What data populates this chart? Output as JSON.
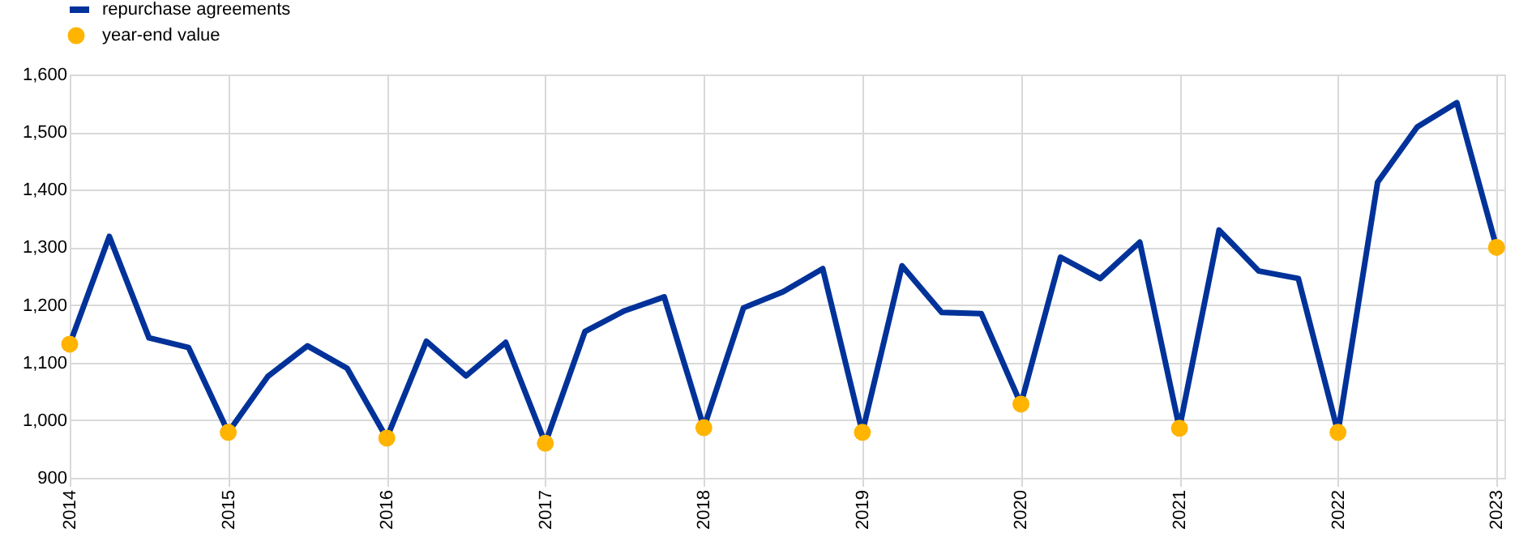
{
  "chart_data": {
    "type": "line",
    "x": [
      2014,
      2014.25,
      2014.5,
      2014.75,
      2015,
      2015.25,
      2015.5,
      2015.75,
      2016,
      2016.25,
      2016.5,
      2016.75,
      2017,
      2017.25,
      2017.5,
      2017.75,
      2018,
      2018.25,
      2018.5,
      2018.75,
      2019,
      2019.25,
      2019.5,
      2019.75,
      2020,
      2020.25,
      2020.5,
      2020.75,
      2021,
      2021.25,
      2021.5,
      2021.75,
      2022,
      2022.25,
      2022.5,
      2022.75,
      2023
    ],
    "series": [
      {
        "name": "repurchase agreements",
        "color": "#003299",
        "line_style": "solid",
        "values": [
          1132,
          1319,
          1143,
          1126,
          979,
          1076,
          1129,
          1090,
          969,
          1137,
          1077,
          1135,
          960,
          1154,
          1190,
          1214,
          987,
          1195,
          1223,
          1263,
          979,
          1268,
          1187,
          1185,
          1028,
          1283,
          1246,
          1309,
          986,
          1330,
          1259,
          1246,
          979,
          1413,
          1509,
          1551,
          1300
        ]
      },
      {
        "name": "year-end value",
        "type": "scatter",
        "color": "#ffb400",
        "marker": "circle",
        "x": [
          2014,
          2015,
          2016,
          2017,
          2018,
          2019,
          2020,
          2021,
          2022,
          2023
        ],
        "values": [
          1132,
          979,
          969,
          960,
          987,
          979,
          1028,
          986,
          979,
          1300
        ]
      }
    ],
    "xlim": [
      2014,
      2023.05
    ],
    "xticks": [
      2014,
      2015,
      2016,
      2017,
      2018,
      2019,
      2020,
      2021,
      2022,
      2023
    ],
    "ylim": [
      900,
      1600
    ],
    "yticks": [
      900,
      {
        "value": 1000,
        "label": "1,000"
      },
      {
        "value": 1100,
        "label": "1,100"
      },
      {
        "value": 1200,
        "label": "1,200"
      },
      {
        "value": 1300,
        "label": "1,300"
      },
      {
        "value": 1400,
        "label": "1,400"
      },
      {
        "value": 1500,
        "label": "1,500"
      },
      {
        "value": 1600,
        "label": "1,600"
      }
    ],
    "grid": true,
    "legend": "top left"
  }
}
